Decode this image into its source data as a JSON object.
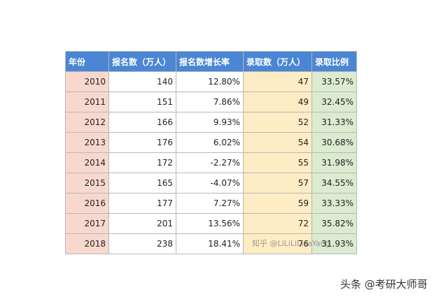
{
  "table": {
    "headers": [
      "年份",
      "报名数（万人）",
      "报名数增长率",
      "录取数（万人）",
      "录取比例"
    ],
    "rows": [
      [
        "2010",
        "140",
        "12.80%",
        "47",
        "33.57%"
      ],
      [
        "2011",
        "151",
        "7.86%",
        "49",
        "32.45%"
      ],
      [
        "2012",
        "166",
        "9.93%",
        "52",
        "31.33%"
      ],
      [
        "2013",
        "176",
        "6.02%",
        "54",
        "30.68%"
      ],
      [
        "2014",
        "172",
        "-2.27%",
        "55",
        "31.98%"
      ],
      [
        "2015",
        "165",
        "-4.07%",
        "57",
        "34.55%"
      ],
      [
        "2016",
        "177",
        "7.27%",
        "59",
        "33.33%"
      ],
      [
        "2017",
        "201",
        "13.56%",
        "72",
        "35.82%"
      ],
      [
        "2018",
        "238",
        "18.41%",
        "76",
        "31.93%"
      ]
    ]
  },
  "watermark": "知乎 @LiLiLiLisaYang",
  "brand": "头条 @考研大师哥",
  "colors": {
    "header": "#4a86d4",
    "year_col": "#f8d8cd",
    "admission_col": "#fdecc4",
    "rate_col": "#dcebcf"
  }
}
